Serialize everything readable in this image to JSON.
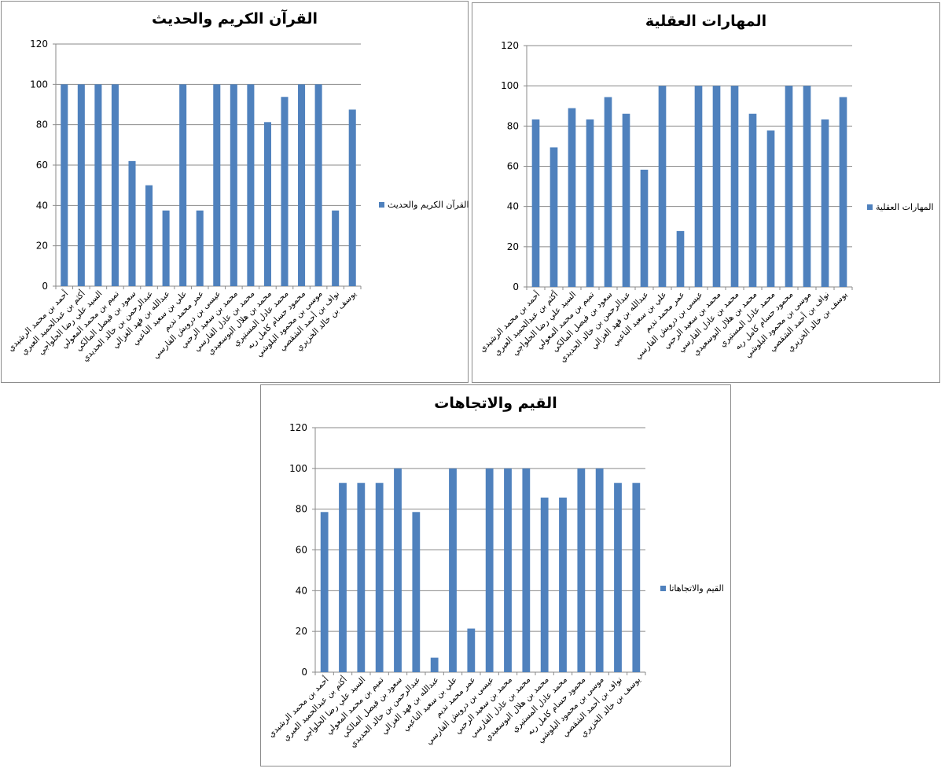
{
  "chart_data": [
    {
      "type": "bar",
      "title": "القرآن الكريم والحديث",
      "categories": [
        "أحمد بن محمد الرشيدي",
        "أكثم بن عبدالحميد العبري",
        "السيد علي رضا الحلواجي",
        "تميم بن محمد المعولي",
        "سعود بن فيصل المالكي",
        "عبدالرحمن بن خالد الحديدي",
        "عبدالله بن فهد الغزالي",
        "علي بن سعيد الناعبي",
        "عمر محمد نديم",
        "عيسى بن درويش الفارسي",
        "محمد بن سعيد الرحبي",
        "محمد بن عادل الفارسي",
        "محمد بن هلال البوسعيدي",
        "محمد عادل المستيري",
        "محمود حسام كامل ربه",
        "موسى بن محمود البلوشي",
        "نواف بن أحمد الشقصي",
        "يوسف بن خالد الخزيري"
      ],
      "series": [
        {
          "name": "القرآن الكريم والحديث",
          "values": [
            100,
            100,
            100,
            100,
            62,
            50,
            37.5,
            100,
            37.5,
            100,
            100,
            100,
            81.3,
            93.8,
            100,
            100,
            37.5,
            87.5
          ]
        }
      ],
      "ylim": [
        0,
        120
      ],
      "yticks": [
        0,
        20,
        40,
        60,
        80,
        100,
        120
      ],
      "legend": "right",
      "color": "#4f81bd"
    },
    {
      "type": "bar",
      "title": "المهارات العقلية",
      "categories": [
        "أحمد بن محمد الرشيدي",
        "أكثم بن عبدالحميد العبري",
        "السيد علي رضا الحلواجي",
        "تميم بن محمد المعولي",
        "سعود بن فيصل المالكي",
        "عبدالرحمن بن خالد الحديدي",
        "عبدالله بن فهد الغزالي",
        "علي بن سعيد الناعبي",
        "عمر محمد نديم",
        "عيسى بن درويش الفارسي",
        "محمد بن سعيد الرحبي",
        "محمد بن عادل الفارسي",
        "محمد بن هلال البوسعيدي",
        "محمد عادل المستيري",
        "محمود حسام كامل ربه",
        "موسى بن محمود البلوشي",
        "نواف بن أحمد الشقصي",
        "يوسف بن خالد الخزيري"
      ],
      "series": [
        {
          "name": "المهارات العقلية",
          "values": [
            83.3,
            69.4,
            88.9,
            83.3,
            94.4,
            86.1,
            58.3,
            100,
            27.8,
            100,
            100,
            100,
            86.1,
            77.8,
            100,
            100,
            83.3,
            94.4
          ]
        }
      ],
      "ylim": [
        0,
        120
      ],
      "yticks": [
        0,
        20,
        40,
        60,
        80,
        100,
        120
      ],
      "legend": "right",
      "color": "#4f81bd"
    },
    {
      "type": "bar",
      "title": "القيم والاتجاهات",
      "categories": [
        "أحمد بن محمد الرشيدي",
        "أكثم بن عبدالحميد العبري",
        "السيد علي رضا الحلواجي",
        "تميم بن محمد المعولي",
        "سعود بن فيصل المالكي",
        "عبدالرحمن بن خالد الحديدي",
        "عبدالله بن فهد الغزالي",
        "علي بن سعيد الناعبي",
        "عمر محمد نديم",
        "عيسى بن درويش الفارسي",
        "محمد بن سعيد الرحبي",
        "محمد بن عادل الفارسي",
        "محمد بن هلال البوسعيدي",
        "محمد عادل المستيري",
        "محمود حسام كامل ربه",
        "موسى بن محمود البلوشي",
        "نواف بن أحمد الشقصي",
        "يوسف بن خالد الخزيري"
      ],
      "series": [
        {
          "name": "القيم والاتجاهاتا",
          "values": [
            78.6,
            92.9,
            92.9,
            92.9,
            100,
            78.6,
            7.1,
            100,
            21.4,
            100,
            100,
            100,
            85.7,
            85.7,
            100,
            100,
            92.9,
            92.9
          ]
        }
      ],
      "ylim": [
        0,
        120
      ],
      "yticks": [
        0,
        20,
        40,
        60,
        80,
        100,
        120
      ],
      "legend": "right",
      "color": "#4f81bd"
    }
  ]
}
